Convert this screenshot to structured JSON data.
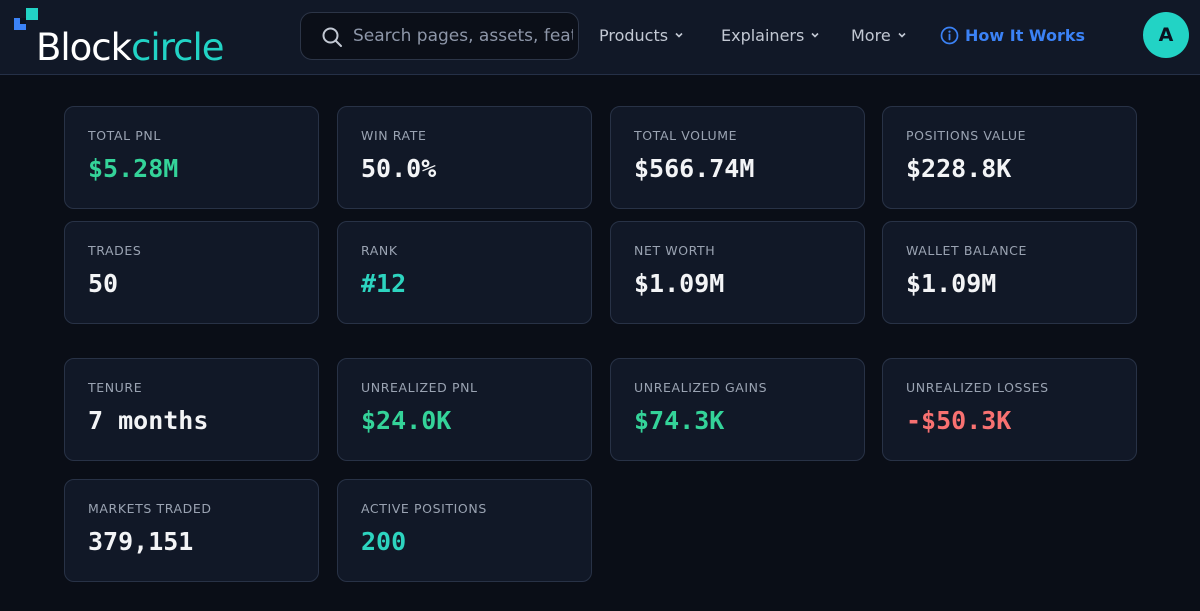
{
  "header": {
    "logo": {
      "part1": "Block",
      "part2": "circle"
    },
    "search": {
      "placeholder": "Search pages, assets, features..."
    },
    "nav": [
      {
        "label": "Products"
      },
      {
        "label": "Explainers"
      },
      {
        "label": "More"
      }
    ],
    "how_it_works": "How It Works",
    "avatar": "A"
  },
  "colors": {
    "positive": "#34d399",
    "accent": "#2dd4bf",
    "negative": "#f87171",
    "link": "#3b82f6"
  },
  "stats": {
    "total_pnl": {
      "label": "TOTAL PNL",
      "value": "$5.28M"
    },
    "win_rate": {
      "label": "WIN RATE",
      "value": "50.0%"
    },
    "total_volume": {
      "label": "TOTAL VOLUME",
      "value": "$566.74M"
    },
    "positions_value": {
      "label": "POSITIONS VALUE",
      "value": "$228.8K"
    },
    "trades": {
      "label": "TRADES",
      "value": "50"
    },
    "rank": {
      "label": "RANK",
      "value": "#12"
    },
    "net_worth": {
      "label": "NET WORTH",
      "value": "$1.09M"
    },
    "wallet_balance": {
      "label": "WALLET BALANCE",
      "value": "$1.09M"
    },
    "tenure": {
      "label": "TENURE",
      "value": "7 months"
    },
    "unrealized_pnl": {
      "label": "UNREALIZED PNL",
      "value": "$24.0K"
    },
    "unrealized_gains": {
      "label": "UNREALIZED GAINS",
      "value": "$74.3K"
    },
    "unrealized_losses": {
      "label": "UNREALIZED LOSSES",
      "value": "-$50.3K"
    },
    "markets_traded": {
      "label": "MARKETS TRADED",
      "value": "379,151"
    },
    "active_positions": {
      "label": "ACTIVE POSITIONS",
      "value": "200"
    }
  }
}
